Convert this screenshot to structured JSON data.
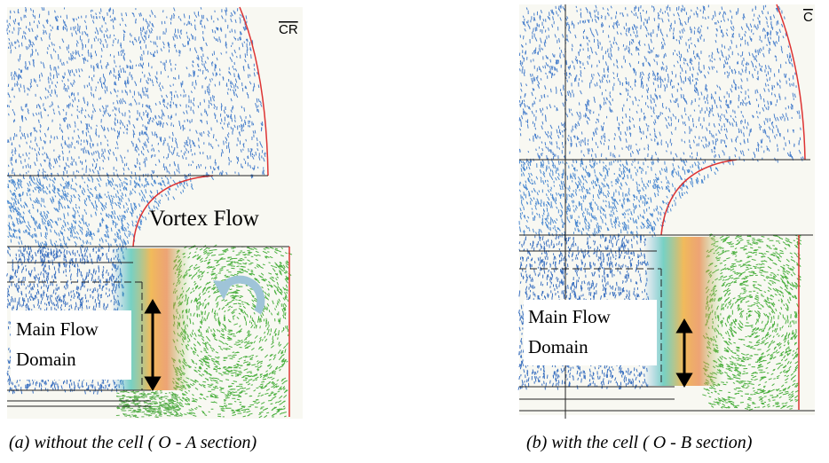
{
  "panels": [
    {
      "corner_label": "CR",
      "annotation": "Vortex Flow",
      "domain_label": [
        "Main Flow",
        "Domain"
      ],
      "caption": "(a) without the cell ( O - A section)"
    },
    {
      "corner_label": "C",
      "domain_label": [
        "Main Flow",
        "Domain"
      ],
      "caption": "(b) with the cell ( O - B section)"
    }
  ]
}
